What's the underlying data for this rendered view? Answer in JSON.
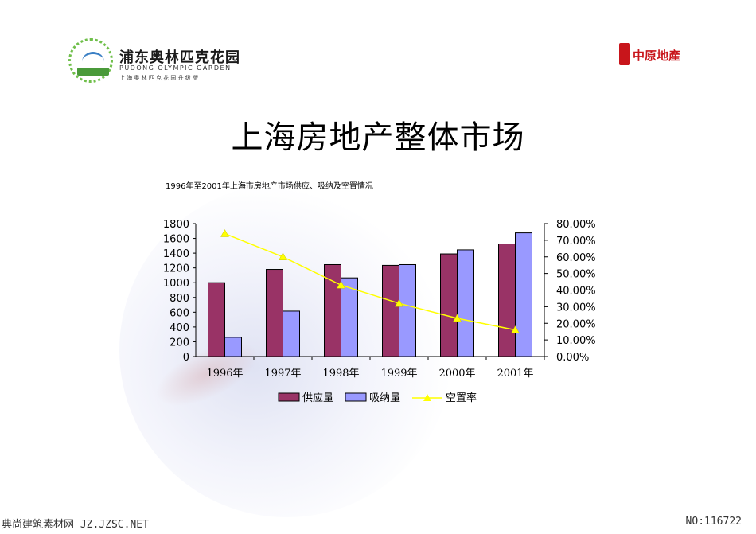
{
  "header": {
    "logo_left": {
      "title": "浦东奥林匹克花园",
      "subtitle_en": "PUDONG OLYMPIC GARDEN",
      "subtitle_cn": "上海奥林匹克花园升级版"
    },
    "logo_right": {
      "text": "中原地產"
    }
  },
  "page_title": "上海房地产整体市场",
  "chart_data": {
    "type": "bar",
    "title": "1996年至2001年上海市房地产市场供应、吸纳及空置情况",
    "categories": [
      "1996年",
      "1997年",
      "1998年",
      "1999年",
      "2000年",
      "2001年"
    ],
    "series": [
      {
        "name": "供应量",
        "type": "bar",
        "axis": "left",
        "color": "#993366",
        "values": [
          1000,
          1180,
          1245,
          1235,
          1390,
          1525
        ]
      },
      {
        "name": "吸纳量",
        "type": "bar",
        "axis": "left",
        "color": "#9999ff",
        "values": [
          260,
          615,
          1065,
          1245,
          1445,
          1675
        ]
      },
      {
        "name": "空置率",
        "type": "line",
        "axis": "right",
        "color": "#ffff00",
        "values": [
          0.74,
          0.6,
          0.43,
          0.32,
          0.23,
          0.16
        ]
      }
    ],
    "y_left": {
      "min": 0,
      "max": 1800,
      "ticks": [
        "0",
        "200",
        "400",
        "600",
        "800",
        "1000",
        "1200",
        "1400",
        "1600",
        "1800"
      ]
    },
    "y_right": {
      "min": 0,
      "max": 0.8,
      "ticks": [
        "0.00%",
        "10.00%",
        "20.00%",
        "30.00%",
        "40.00%",
        "50.00%",
        "60.00%",
        "70.00%",
        "80.00%"
      ]
    },
    "legend": {
      "position": "bottom",
      "items": [
        "供应量",
        "吸纳量",
        "空置率"
      ]
    },
    "grid": false
  },
  "footer": {
    "left": "典尚建筑素材网 JZ.JZSC.NET",
    "right": "NO:116722"
  }
}
